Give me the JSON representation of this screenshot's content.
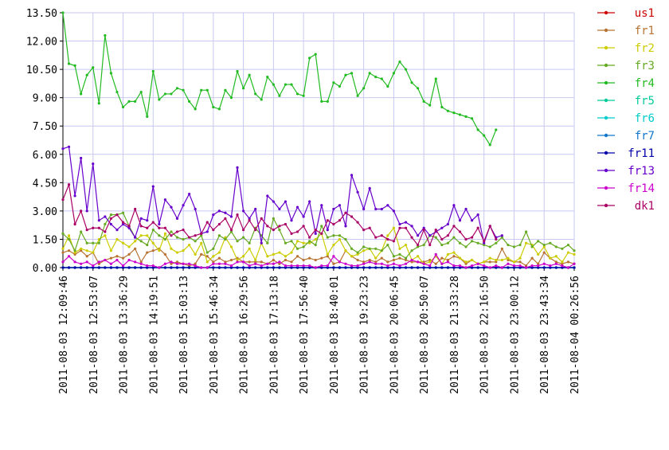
{
  "chart_data": {
    "type": "line",
    "title": "",
    "xlabel": "",
    "ylabel": "",
    "ylim": [
      0,
      13.5
    ],
    "grid": true,
    "legend_position": "right",
    "y_ticks": [
      "0.00",
      "1.50",
      "3.00",
      "4.50",
      "6.00",
      "7.50",
      "9.00",
      "10.50",
      "12.00",
      "13.50"
    ],
    "x_ticks": [
      {
        "i": 0,
        "label": "2011-08-03 12:09:46"
      },
      {
        "i": 5,
        "label": "2011-08-03 12:53:07"
      },
      {
        "i": 10,
        "label": "2011-08-03 13:36:29"
      },
      {
        "i": 15,
        "label": "2011-08-03 14:19:51"
      },
      {
        "i": 20,
        "label": "2011-08-03 15:03:13"
      },
      {
        "i": 25,
        "label": "2011-08-03 15:46:34"
      },
      {
        "i": 30,
        "label": "2011-08-03 16:29:56"
      },
      {
        "i": 35,
        "label": "2011-08-03 17:13:18"
      },
      {
        "i": 40,
        "label": "2011-08-03 17:56:40"
      },
      {
        "i": 45,
        "label": "2011-08-03 18:40:01"
      },
      {
        "i": 50,
        "label": "2011-08-03 19:23:23"
      },
      {
        "i": 55,
        "label": "2011-08-03 20:06:45"
      },
      {
        "i": 60,
        "label": "2011-08-03 20:50:07"
      },
      {
        "i": 65,
        "label": "2011-08-03 21:33:28"
      },
      {
        "i": 70,
        "label": "2011-08-03 22:16:50"
      },
      {
        "i": 75,
        "label": "2011-08-03 23:00:12"
      },
      {
        "i": 80,
        "label": "2011-08-03 23:43:34"
      },
      {
        "i": 85,
        "label": "2011-08-04 00:26:56"
      }
    ],
    "series": [
      {
        "name": "us1",
        "color": "#cc0000",
        "values": [
          0,
          0,
          0,
          0,
          0,
          0,
          0,
          0,
          0,
          0,
          0,
          0,
          0,
          0,
          0,
          0,
          0,
          0,
          0,
          0,
          0,
          0,
          0,
          0,
          0,
          0,
          0,
          0,
          0,
          0,
          0,
          0,
          0,
          0,
          0,
          0,
          0,
          0,
          0,
          0,
          0,
          0,
          0,
          0,
          0,
          0,
          0,
          0,
          0,
          0,
          0,
          0,
          0,
          0,
          0,
          0,
          0,
          0,
          0,
          0,
          0,
          0,
          0,
          0,
          0,
          0,
          0,
          0,
          0,
          0,
          0,
          0,
          0,
          0,
          0,
          0,
          0,
          0,
          0,
          0,
          0,
          0,
          0,
          0,
          0,
          0
        ]
      },
      {
        "name": "fr1",
        "color": "#b87333",
        "values": [
          0.8,
          0.9,
          0.7,
          0.9,
          0.6,
          0.8,
          0.2,
          0.4,
          0.5,
          0.6,
          0.5,
          0.7,
          1.0,
          0.3,
          0.8,
          0.9,
          1.0,
          0.7,
          0.2,
          0.3,
          0.2,
          0.1,
          0.2,
          0.7,
          0.6,
          0.3,
          0.5,
          0.3,
          0.4,
          0.5,
          0.3,
          0.3,
          0.3,
          0.3,
          0.2,
          0.4,
          0.2,
          0.4,
          0.3,
          0.6,
          0.4,
          0.5,
          0.4,
          0.5,
          0.6,
          0.2,
          0.3,
          0.9,
          0.6,
          0.4,
          0.3,
          0.4,
          0.3,
          0.5,
          0.3,
          0.4,
          0.5,
          0.4,
          0.3,
          0.3,
          0.3,
          0.4,
          0.2,
          0.5,
          0.4,
          0.6,
          0.5,
          0.2,
          0.4,
          0.2,
          0.3,
          0.3,
          0.3,
          1.0,
          0.4,
          0.3,
          0.3,
          0.1,
          0.5,
          0.2,
          0.8,
          0.5,
          0.3,
          0.2,
          0.3,
          0.2
        ]
      },
      {
        "name": "fr2",
        "color": "#cccc00",
        "values": [
          1.0,
          1.7,
          0.8,
          1.0,
          0.9,
          0.8,
          1.5,
          1.7,
          0.9,
          1.5,
          1.3,
          1.1,
          1.4,
          1.7,
          1.7,
          1.3,
          0.9,
          1.8,
          1.0,
          0.8,
          0.9,
          1.2,
          0.7,
          1.3,
          0.3,
          0.6,
          0.8,
          1.6,
          1.1,
          0.4,
          0.6,
          1.0,
          0.4,
          1.3,
          0.6,
          0.7,
          0.8,
          0.6,
          0.8,
          1.4,
          1.3,
          1.3,
          1.5,
          1.8,
          0.7,
          1.2,
          1.5,
          0.9,
          0.6,
          0.7,
          0.9,
          1.0,
          0.5,
          0.9,
          1.7,
          2.1,
          1.0,
          1.2,
          0.4,
          0.6,
          0.2,
          0.3,
          0.6,
          0.2,
          0.7,
          0.8,
          0.5,
          0.3,
          0.4,
          0.2,
          0.3,
          0.5,
          0.4,
          0.4,
          0.5,
          0.3,
          0.5,
          1.3,
          1.2,
          0.7,
          1.1,
          0.5,
          0.6,
          0.3,
          0.8,
          0.7
        ]
      },
      {
        "name": "fr3",
        "color": "#66aa22",
        "values": [
          1.8,
          1.5,
          0.9,
          1.9,
          1.3,
          1.3,
          1.3,
          2.3,
          2.8,
          2.8,
          2.9,
          2.2,
          1.6,
          1.4,
          1.2,
          2.0,
          1.7,
          1.5,
          1.9,
          1.6,
          1.5,
          1.6,
          1.4,
          1.7,
          0.8,
          1.0,
          1.7,
          1.5,
          1.9,
          1.4,
          1.6,
          1.3,
          2.1,
          1.7,
          1.3,
          2.6,
          2.0,
          1.3,
          1.4,
          1.0,
          1.1,
          1.4,
          1.2,
          2.2,
          1.6,
          1.7,
          1.7,
          1.5,
          1.0,
          0.8,
          1.1,
          1.0,
          1.0,
          0.9,
          1.2,
          0.6,
          0.7,
          0.5,
          0.9,
          1.1,
          1.2,
          1.7,
          1.6,
          1.2,
          1.3,
          1.6,
          1.3,
          1.1,
          1.4,
          1.3,
          1.2,
          1.1,
          1.3,
          1.6,
          1.2,
          1.1,
          1.2,
          1.9,
          1.1,
          1.4,
          1.2,
          1.3,
          1.1,
          1.0,
          1.2,
          0.9
        ]
      },
      {
        "name": "fr4",
        "color": "#22bb22",
        "values": [
          13.5,
          10.8,
          10.7,
          9.2,
          10.2,
          10.6,
          8.7,
          12.3,
          10.3,
          9.3,
          8.5,
          8.8,
          8.8,
          9.3,
          8.0,
          10.4,
          8.9,
          9.2,
          9.2,
          9.5,
          9.4,
          8.8,
          8.4,
          9.4,
          9.4,
          8.5,
          8.4,
          9.4,
          9.0,
          10.4,
          9.5,
          10.2,
          9.2,
          8.9,
          10.1,
          9.7,
          9.1,
          9.7,
          9.7,
          9.2,
          9.1,
          11.1,
          11.3,
          8.8,
          8.8,
          9.8,
          9.6,
          10.2,
          10.3,
          9.1,
          9.5,
          10.3,
          10.1,
          10.0,
          9.6,
          10.3,
          10.9,
          10.5,
          9.8,
          9.5,
          8.8,
          8.6,
          10.0,
          8.5,
          8.3,
          8.2,
          8.1,
          8.0,
          7.9,
          7.3,
          7.0,
          6.5,
          7.3
        ]
      },
      {
        "name": "fr5",
        "color": "#00cc99",
        "values": [
          0,
          0,
          0,
          0,
          0,
          0,
          0,
          0,
          0,
          0,
          0,
          0,
          0,
          0,
          0,
          0,
          0,
          0,
          0,
          0,
          0,
          0,
          0,
          0,
          0,
          0,
          0,
          0,
          0,
          0,
          0,
          0,
          0,
          0,
          0,
          0,
          0,
          0,
          0,
          0,
          0,
          0,
          0,
          0,
          0,
          0,
          0,
          0,
          0,
          0,
          0,
          0,
          0,
          0,
          0,
          0,
          0,
          0,
          0,
          0,
          0,
          0,
          0,
          0,
          0,
          0,
          0,
          0,
          0,
          0,
          0,
          0,
          0,
          0,
          0,
          0,
          0,
          0,
          0,
          0,
          0,
          0,
          0,
          0,
          0,
          0
        ]
      },
      {
        "name": "fr6",
        "color": "#00cccc",
        "values": [
          0,
          0,
          0,
          0,
          0,
          0,
          0,
          0,
          0,
          0,
          0,
          0,
          0,
          0,
          0,
          0,
          0,
          0,
          0,
          0,
          0,
          0,
          0,
          0,
          0,
          0,
          0,
          0,
          0,
          0,
          0,
          0,
          0,
          0,
          0,
          0,
          0,
          0,
          0,
          0,
          0,
          0,
          0,
          0,
          0,
          0,
          0,
          0,
          0,
          0,
          0,
          0,
          0,
          0,
          0,
          0,
          0,
          0,
          0,
          0,
          0,
          0,
          0,
          0,
          0,
          0,
          0,
          0,
          0,
          0,
          0,
          0,
          0,
          0,
          0,
          0,
          0,
          0,
          0,
          0,
          0,
          0,
          0,
          0,
          0,
          0
        ]
      },
      {
        "name": "fr7",
        "color": "#1177cc",
        "values": [
          0,
          0,
          0,
          0,
          0,
          0,
          0,
          0,
          0,
          0,
          0,
          0,
          0,
          0,
          0,
          0,
          0,
          0,
          0,
          0,
          0,
          0,
          0,
          0,
          0,
          0,
          0,
          0,
          0,
          0,
          0,
          0,
          0,
          0,
          0,
          0,
          0,
          0,
          0,
          0,
          0,
          0,
          0,
          0,
          0,
          0,
          0,
          0,
          0,
          0,
          0,
          0,
          0,
          0,
          0,
          0,
          0,
          0,
          0,
          0,
          0,
          0,
          0,
          0,
          0,
          0,
          0,
          0,
          0,
          0,
          0,
          0,
          0,
          0,
          0,
          0,
          0,
          0,
          0,
          0,
          0,
          0,
          0,
          0,
          0,
          0
        ]
      },
      {
        "name": "fr11",
        "color": "#0000aa",
        "values": [
          0,
          0,
          0,
          0,
          0,
          0,
          0,
          0,
          0,
          0,
          0,
          0,
          0,
          0,
          0,
          0,
          0,
          0,
          0,
          0,
          0,
          0,
          0,
          0,
          0,
          0,
          0,
          0,
          0,
          0,
          0,
          0,
          0,
          0,
          0,
          0,
          0,
          0,
          0,
          0,
          0,
          0,
          0,
          0,
          0,
          0,
          0,
          0,
          0,
          0,
          0,
          0,
          0,
          0,
          0,
          0,
          0,
          0,
          0,
          0,
          0,
          0,
          0,
          0,
          0,
          0,
          0,
          0,
          0,
          0,
          0,
          0,
          0,
          0,
          0,
          0,
          0,
          0,
          0,
          0,
          0,
          0,
          0,
          0,
          0,
          0
        ]
      },
      {
        "name": "fr13",
        "color": "#6600cc",
        "values": [
          6.3,
          6.4,
          3.8,
          5.8,
          3.0,
          5.5,
          2.5,
          2.7,
          2.3,
          2.0,
          2.3,
          2.1,
          1.6,
          2.6,
          2.5,
          4.3,
          2.3,
          3.6,
          3.2,
          2.6,
          3.3,
          3.9,
          3.1,
          1.8,
          1.9,
          2.8,
          3.0,
          2.9,
          2.7,
          5.3,
          3.0,
          2.6,
          3.1,
          1.3,
          3.8,
          3.5,
          3.1,
          3.5,
          2.5,
          3.2,
          2.7,
          3.5,
          1.8,
          3.3,
          2.0,
          3.1,
          3.3,
          2.2,
          4.9,
          4.0,
          3.1,
          4.2,
          3.1,
          3.1,
          3.3,
          3.0,
          2.3,
          2.4,
          2.2,
          1.7,
          2.1,
          1.7,
          1.9,
          2.1,
          2.3,
          3.3,
          2.5,
          3.1,
          2.5,
          2.8,
          1.3,
          2.2,
          1.6,
          1.7
        ]
      },
      {
        "name": "fr14",
        "color": "#cc00cc",
        "values": [
          0.3,
          0.6,
          0.3,
          0.2,
          0.3,
          0.1,
          0.3,
          0.4,
          0.2,
          0.4,
          0.1,
          0.4,
          0.3,
          0.2,
          0.1,
          0.1,
          0.0,
          0.2,
          0.3,
          0.2,
          0.2,
          0.2,
          0.1,
          0.0,
          0.0,
          0.2,
          0.2,
          0.2,
          0.1,
          0.3,
          0.3,
          0.1,
          0.2,
          0.1,
          0.2,
          0.2,
          0.3,
          0.1,
          0.1,
          0.1,
          0.1,
          0.1,
          0.0,
          0.1,
          0.1,
          0.6,
          0.3,
          0.2,
          0.1,
          0.1,
          0.2,
          0.3,
          0.2,
          0.2,
          0.1,
          0.2,
          0.1,
          0.2,
          0.4,
          0.3,
          0.2,
          0.1,
          0.7,
          0.2,
          0.3,
          0.1,
          0.1,
          0.0,
          0.1,
          0.2,
          0.1,
          0.0,
          0.1,
          0.0,
          0.2,
          0.1,
          0.1,
          0.0,
          0.1,
          0.1,
          0.2,
          0.1,
          0.2,
          0.1,
          0.0,
          0.2
        ]
      },
      {
        "name": "dk1",
        "color": "#aa0066",
        "values": [
          3.6,
          4.4,
          2.3,
          3.0,
          2.0,
          2.1,
          2.1,
          1.9,
          2.6,
          2.8,
          2.4,
          2.2,
          3.1,
          2.2,
          2.1,
          2.4,
          2.1,
          2.1,
          1.7,
          1.9,
          2.0,
          1.6,
          1.7,
          1.8,
          2.4,
          2.0,
          2.3,
          2.6,
          2.0,
          2.8,
          2.0,
          2.5,
          2.0,
          2.6,
          2.2,
          2.0,
          2.2,
          2.3,
          1.8,
          1.9,
          2.2,
          1.6,
          2.0,
          1.8,
          2.5,
          2.3,
          2.5,
          2.9,
          2.7,
          2.4,
          2.0,
          2.1,
          1.6,
          1.7,
          1.5,
          1.4,
          2.1,
          2.1,
          1.6,
          1.2,
          2.0,
          1.2,
          2.0,
          1.5,
          1.7,
          2.2,
          1.9,
          1.5,
          1.6,
          2.1,
          1.4,
          2.2,
          1.5
        ]
      }
    ]
  }
}
